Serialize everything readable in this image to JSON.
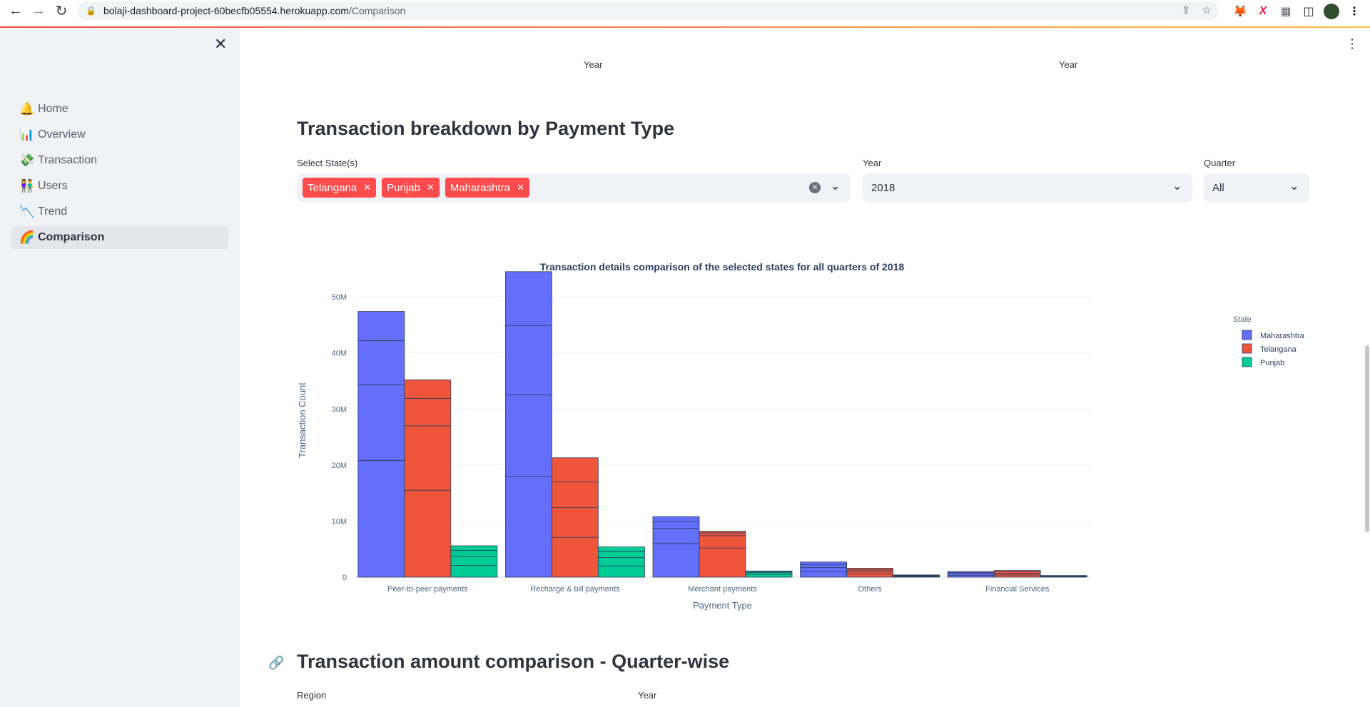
{
  "browser": {
    "url_host": "bolaji-dashboard-project-60becfb05554.herokuapp.com",
    "url_path": "/Comparison"
  },
  "sidebar": {
    "items": [
      {
        "icon": "bell-icon",
        "emoji": "🔔",
        "label": "Home"
      },
      {
        "icon": "bar-chart-icon",
        "emoji": "📊",
        "label": "Overview"
      },
      {
        "icon": "money-icon",
        "emoji": "💸",
        "label": "Transaction"
      },
      {
        "icon": "users-icon",
        "emoji": "👫",
        "label": "Users"
      },
      {
        "icon": "trend-down-icon",
        "emoji": "📉",
        "label": "Trend"
      },
      {
        "icon": "rainbow-icon",
        "emoji": "🌈",
        "label": "Comparison",
        "active": true
      }
    ]
  },
  "previous_chart_axis": {
    "left": "Year",
    "right": "Year"
  },
  "payment_section": {
    "title": "Transaction breakdown by Payment Type",
    "state_label": "Select State(s)",
    "states": [
      "Telangana",
      "Punjab",
      "Maharashtra"
    ],
    "year_label": "Year",
    "year_value": "2018",
    "quarter_label": "Quarter",
    "quarter_value": "All"
  },
  "chart_data": {
    "type": "bar",
    "stacked_segments": true,
    "title": "Transaction details comparison of the selected states for all quarters  of 2018",
    "xlabel": "Payment Type",
    "ylabel": "Transaction Count",
    "ylim": [
      0,
      56000000
    ],
    "yticks": [
      0,
      10000000,
      20000000,
      30000000,
      40000000,
      50000000
    ],
    "ytick_labels": [
      "0",
      "10M",
      "20M",
      "30M",
      "40M",
      "50M"
    ],
    "legend_title": "State",
    "legend_position": "top-right",
    "grid": true,
    "categories": [
      "Peer-to-peer payments",
      "Recharge & bill payments",
      "Merchant payments",
      "Others",
      "Financial Services"
    ],
    "series": [
      {
        "name": "Maharashtra",
        "color": "#636efa",
        "segments": [
          [
            20800000,
            13500000,
            7900000,
            5200000
          ],
          [
            18000000,
            14500000,
            12400000,
            9600000
          ],
          [
            6000000,
            2700000,
            1200000,
            900000
          ],
          [
            1000000,
            700000,
            500000,
            500000
          ],
          [
            300000,
            300000,
            200000,
            200000
          ]
        ]
      },
      {
        "name": "Telangana",
        "color": "#ef553b",
        "segments": [
          [
            15500000,
            11500000,
            4900000,
            3300000
          ],
          [
            7100000,
            5300000,
            4600000,
            4300000
          ],
          [
            5200000,
            2200000,
            500000,
            300000
          ],
          [
            600000,
            400000,
            300000,
            300000
          ],
          [
            400000,
            300000,
            300000,
            200000
          ]
        ]
      },
      {
        "name": "Punjab",
        "color": "#00cc96",
        "segments": [
          [
            2100000,
            1600000,
            1100000,
            800000
          ],
          [
            2000000,
            1500000,
            1100000,
            800000
          ],
          [
            500000,
            300000,
            200000,
            100000
          ],
          [
            100000,
            100000,
            100000,
            100000
          ],
          [
            100000,
            100000,
            50000,
            50000
          ]
        ]
      }
    ]
  },
  "next_section": {
    "title": "Transaction amount comparison - Quarter-wise",
    "region_label": "Region",
    "year_label": "Year"
  }
}
